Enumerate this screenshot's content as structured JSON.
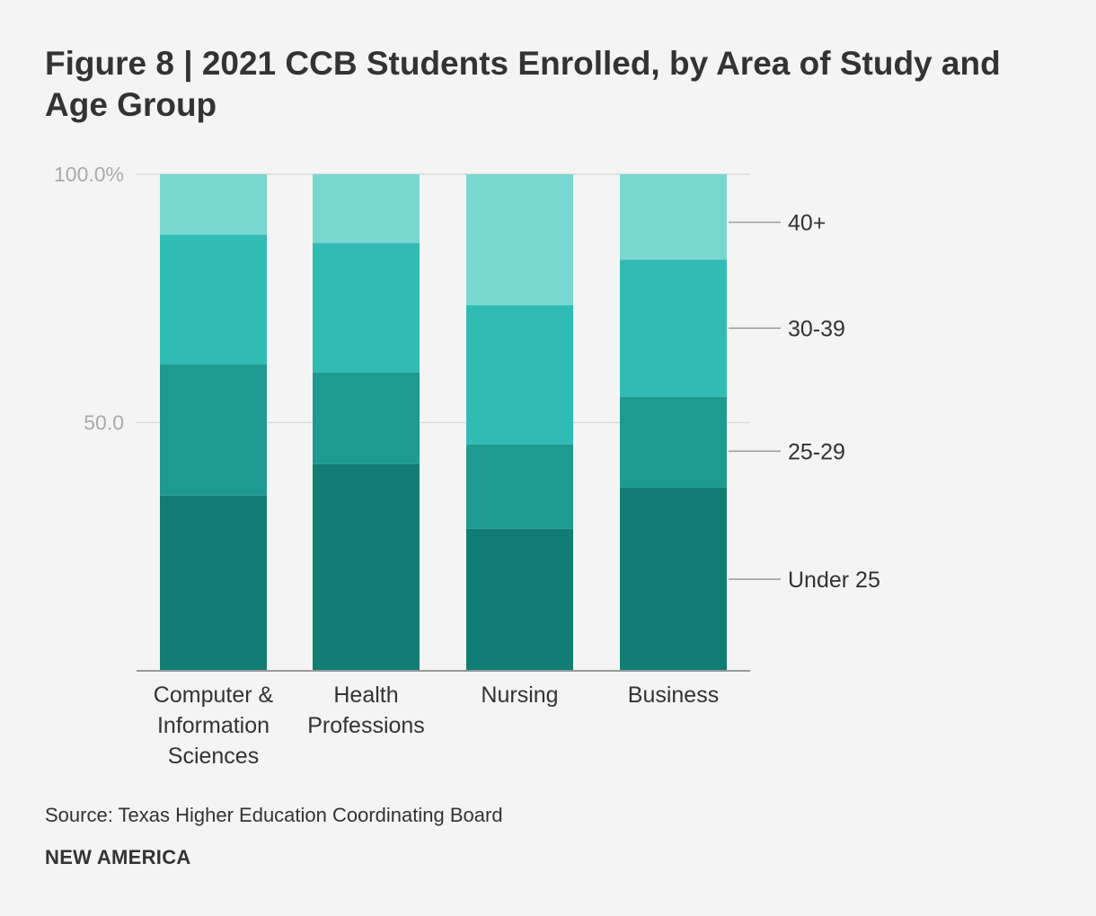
{
  "title": "Figure 8 | 2021 CCB Students Enrolled, by Area of Study and Age Group",
  "source": "Source: Texas Higher Education Coordinating Board",
  "brand": "NEW AMERICA",
  "colors": {
    "under_25": "#127d74",
    "age_25_29": "#1e9a91",
    "age_30_39": "#31bcb3",
    "age_40_plus": "#79d7d1",
    "grid": "#d9d9d9",
    "axis": "#999999",
    "tick_text": "#aaaaaa",
    "text": "#333333"
  },
  "chart_data": {
    "type": "bar",
    "stacked": true,
    "title": "Figure 8 | 2021 CCB Students Enrolled, by Area of Study and Age Group",
    "categories": [
      [
        "Computer &",
        "Information",
        "Sciences"
      ],
      [
        "Health",
        "Professions"
      ],
      [
        "Nursing"
      ],
      [
        "Business"
      ]
    ],
    "series": [
      {
        "name": "Under 25",
        "values": [
          35.3,
          41.6,
          28.6,
          36.9
        ]
      },
      {
        "name": "25-29",
        "values": [
          26.5,
          18.5,
          17.0,
          18.3
        ]
      },
      {
        "name": "30-39",
        "values": [
          26.0,
          26.1,
          28.0,
          27.6
        ]
      },
      {
        "name": "40+",
        "values": [
          12.2,
          13.8,
          26.4,
          17.2
        ]
      }
    ],
    "ylim": [
      0,
      100
    ],
    "yticks": [
      {
        "value": 50,
        "label": "50.0"
      },
      {
        "value": 100,
        "label": "100.0%"
      }
    ],
    "legend": "right, labels aligned to last bar segments",
    "xlabel": "",
    "ylabel": ""
  }
}
